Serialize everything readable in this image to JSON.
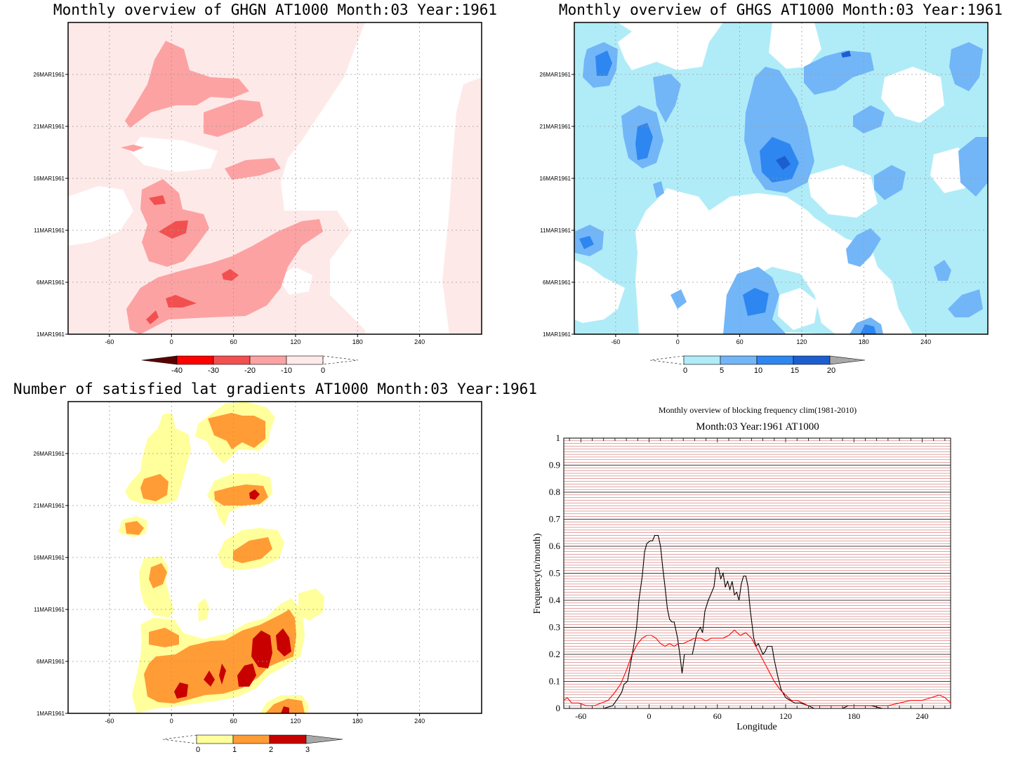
{
  "panels": [
    {
      "title": "Monthly overview of GHGN AT1000 Month:03 Year:1961",
      "x_ticks": [
        "-60",
        "0",
        "60",
        "120",
        "180",
        "240"
      ],
      "y_ticks": [
        "1MAR1961",
        "6MAR1961",
        "11MAR1961",
        "16MAR1961",
        "21MAR1961",
        "26MAR1961"
      ],
      "colorbar": {
        "labels": [
          "-40",
          "-30",
          "-20",
          "-10",
          "0"
        ],
        "colors": [
          "#5a0000",
          "#ff0000",
          "#f25050",
          "#fca2a2",
          "#ffeaea"
        ]
      }
    },
    {
      "title": "Monthly overview of GHGS AT1000 Month:03 Year:1961",
      "x_ticks": [
        "-60",
        "0",
        "60",
        "120",
        "180",
        "240"
      ],
      "y_ticks": [
        "1MAR1961",
        "6MAR1961",
        "11MAR1961",
        "16MAR1961",
        "21MAR1961",
        "26MAR1961"
      ],
      "colorbar": {
        "labels": [
          "0",
          "5",
          "10",
          "15",
          "20"
        ],
        "colors": [
          "#b0ecf8",
          "#72b6f8",
          "#2e86f0",
          "#1c5ed0",
          "#a8a8a8"
        ]
      }
    },
    {
      "title": "Number of satisfied lat gradients AT1000 Month:03 Year:1961",
      "x_ticks": [
        "-60",
        "0",
        "60",
        "120",
        "180",
        "240"
      ],
      "y_ticks": [
        "1MAR1961",
        "6MAR1961",
        "11MAR1961",
        "16MAR1961",
        "21MAR1961",
        "26MAR1961"
      ],
      "colorbar": {
        "labels": [
          "0",
          "1",
          "2",
          "3"
        ],
        "colors": [
          "#ffff9c",
          "#ff9c36",
          "#c80000",
          "#a8a8a8"
        ]
      }
    }
  ],
  "line_chart": {
    "title_line1": "Monthly overview of blocking frequency clim(1981-2010)",
    "title_line2": "Month:03 Year:1961  AT1000",
    "xlabel": "Longitude",
    "ylabel": "Frequency(n/month)"
  },
  "chart_data": {
    "type": "line",
    "xlim": [
      -75,
      265
    ],
    "ylim": [
      0,
      1
    ],
    "x_ticks": [
      -60,
      0,
      60,
      120,
      180,
      240
    ],
    "y_ticks": [
      0,
      0.1,
      0.2,
      0.3,
      0.4,
      0.5,
      0.6,
      0.7,
      0.8,
      0.9,
      1
    ],
    "grid": true,
    "series": [
      {
        "color": "#000000",
        "points": [
          [
            -40,
            0
          ],
          [
            -32,
            0.01
          ],
          [
            -27,
            0.04
          ],
          [
            -24,
            0.06
          ],
          [
            -22,
            0.09
          ],
          [
            -19,
            0.1
          ],
          [
            -17,
            0.15
          ],
          [
            -14,
            0.22
          ],
          [
            -11,
            0.3
          ],
          [
            -9,
            0.4
          ],
          [
            -6,
            0.49
          ],
          [
            -4,
            0.58
          ],
          [
            -2,
            0.61
          ],
          [
            1,
            0.62
          ],
          [
            3,
            0.62
          ],
          [
            5,
            0.64
          ],
          [
            8,
            0.64
          ],
          [
            10,
            0.6
          ],
          [
            12,
            0.52
          ],
          [
            14,
            0.45
          ],
          [
            16,
            0.37
          ],
          [
            18,
            0.33
          ],
          [
            20,
            0.32
          ],
          [
            22,
            0.32
          ],
          [
            25,
            0.26
          ],
          [
            27,
            0.2
          ],
          [
            29,
            0.13
          ],
          [
            31,
            0.2
          ],
          [
            35,
            0.2
          ],
          [
            38,
            0.2
          ],
          [
            42,
            0.28
          ],
          [
            45,
            0.3
          ],
          [
            47,
            0.28
          ],
          [
            49,
            0.36
          ],
          [
            52,
            0.4
          ],
          [
            54,
            0.42
          ],
          [
            57,
            0.45
          ],
          [
            59,
            0.52
          ],
          [
            61,
            0.52
          ],
          [
            63,
            0.48
          ],
          [
            65,
            0.5
          ],
          [
            67,
            0.45
          ],
          [
            69,
            0.47
          ],
          [
            71,
            0.44
          ],
          [
            73,
            0.47
          ],
          [
            75,
            0.42
          ],
          [
            77,
            0.43
          ],
          [
            79,
            0.4
          ],
          [
            81,
            0.46
          ],
          [
            83,
            0.49
          ],
          [
            85,
            0.49
          ],
          [
            87,
            0.45
          ],
          [
            89,
            0.36
          ],
          [
            92,
            0.26
          ],
          [
            94,
            0.23
          ],
          [
            96,
            0.24
          ],
          [
            98,
            0.22
          ],
          [
            100,
            0.2
          ],
          [
            102,
            0.21
          ],
          [
            104,
            0.23
          ],
          [
            108,
            0.23
          ],
          [
            110,
            0.18
          ],
          [
            113,
            0.12
          ],
          [
            116,
            0.07
          ],
          [
            120,
            0.04
          ],
          [
            124,
            0.03
          ],
          [
            128,
            0.02
          ],
          [
            133,
            0.02
          ],
          [
            140,
            0.01
          ],
          [
            145,
            0
          ],
          [
            155,
            0
          ],
          [
            170,
            0
          ],
          [
            175,
            0.01
          ],
          [
            195,
            0.01
          ],
          [
            205,
            0
          ],
          [
            215,
            0
          ],
          [
            230,
            0
          ],
          [
            250,
            0
          ],
          [
            265,
            0
          ]
        ]
      },
      {
        "color": "#ff0000",
        "points": [
          [
            -75,
            0.03
          ],
          [
            -72,
            0.04
          ],
          [
            -68,
            0.02
          ],
          [
            -62,
            0.02
          ],
          [
            -55,
            0.01
          ],
          [
            -48,
            0.01
          ],
          [
            -42,
            0.02
          ],
          [
            -36,
            0.03
          ],
          [
            -30,
            0.06
          ],
          [
            -25,
            0.09
          ],
          [
            -20,
            0.14
          ],
          [
            -15,
            0.2
          ],
          [
            -10,
            0.24
          ],
          [
            -6,
            0.26
          ],
          [
            -2,
            0.27
          ],
          [
            2,
            0.27
          ],
          [
            6,
            0.26
          ],
          [
            10,
            0.24
          ],
          [
            14,
            0.23
          ],
          [
            18,
            0.24
          ],
          [
            22,
            0.23
          ],
          [
            26,
            0.24
          ],
          [
            30,
            0.24
          ],
          [
            35,
            0.25
          ],
          [
            40,
            0.26
          ],
          [
            45,
            0.26
          ],
          [
            50,
            0.25
          ],
          [
            55,
            0.26
          ],
          [
            60,
            0.26
          ],
          [
            65,
            0.26
          ],
          [
            70,
            0.27
          ],
          [
            75,
            0.29
          ],
          [
            80,
            0.27
          ],
          [
            85,
            0.28
          ],
          [
            90,
            0.26
          ],
          [
            95,
            0.22
          ],
          [
            100,
            0.18
          ],
          [
            105,
            0.14
          ],
          [
            110,
            0.1
          ],
          [
            115,
            0.07
          ],
          [
            120,
            0.05
          ],
          [
            125,
            0.03
          ],
          [
            130,
            0.03
          ],
          [
            135,
            0.02
          ],
          [
            140,
            0.01
          ],
          [
            150,
            0.01
          ],
          [
            160,
            0.01
          ],
          [
            170,
            0.01
          ],
          [
            180,
            0.01
          ],
          [
            190,
            0.01
          ],
          [
            200,
            0.01
          ],
          [
            210,
            0.01
          ],
          [
            220,
            0.02
          ],
          [
            230,
            0.03
          ],
          [
            240,
            0.03
          ],
          [
            248,
            0.04
          ],
          [
            255,
            0.05
          ],
          [
            260,
            0.04
          ],
          [
            265,
            0.02
          ]
        ]
      }
    ]
  }
}
